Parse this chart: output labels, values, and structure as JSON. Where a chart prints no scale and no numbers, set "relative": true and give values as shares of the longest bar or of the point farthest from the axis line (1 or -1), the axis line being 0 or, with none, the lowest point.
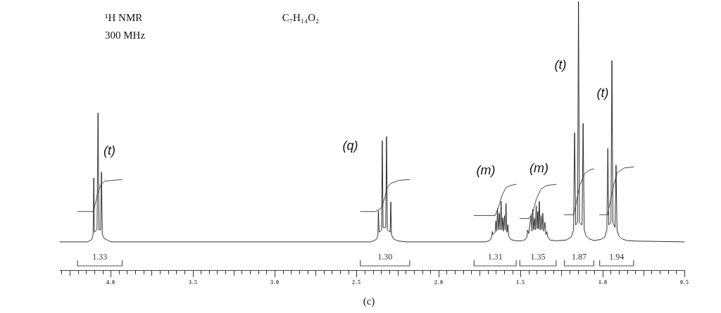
{
  "chart_data": {
    "type": "line",
    "title": "¹H NMR",
    "subtitle": "300 MHz",
    "relative": true,
    "xlim": [
      4.31,
      0.5
    ],
    "xticks": [
      {
        "value": 4.3,
        "label": null
      },
      {
        "value": 4.25,
        "label": null
      },
      {
        "value": 4.2,
        "label": null
      },
      {
        "value": 4.15,
        "label": null
      },
      {
        "value": 4.1,
        "label": null
      },
      {
        "value": 4.05,
        "label": null
      },
      {
        "value": 4,
        "label": "4.0"
      },
      {
        "value": 3.95,
        "label": null
      },
      {
        "value": 3.9,
        "label": null
      },
      {
        "value": 3.85,
        "label": null
      },
      {
        "value": 3.8,
        "label": null
      },
      {
        "value": 3.75,
        "label": null
      },
      {
        "value": 3.7,
        "label": null
      },
      {
        "value": 3.65,
        "label": null
      },
      {
        "value": 3.6,
        "label": null
      },
      {
        "value": 3.55,
        "label": null
      },
      {
        "value": 3.5,
        "label": "3.5"
      },
      {
        "value": 3.45,
        "label": null
      },
      {
        "value": 3.4,
        "label": null
      },
      {
        "value": 3.35,
        "label": null
      },
      {
        "value": 3.3,
        "label": null
      },
      {
        "value": 3.25,
        "label": null
      },
      {
        "value": 3.2,
        "label": null
      },
      {
        "value": 3.15,
        "label": null
      },
      {
        "value": 3.1,
        "label": null
      },
      {
        "value": 3.05,
        "label": null
      },
      {
        "value": 3,
        "label": "3.0"
      },
      {
        "value": 2.95,
        "label": null
      },
      {
        "value": 2.9,
        "label": null
      },
      {
        "value": 2.85,
        "label": null
      },
      {
        "value": 2.8,
        "label": null
      },
      {
        "value": 2.75,
        "label": null
      },
      {
        "value": 2.7,
        "label": null
      },
      {
        "value": 2.65,
        "label": null
      },
      {
        "value": 2.6,
        "label": null
      },
      {
        "value": 2.55,
        "label": null
      },
      {
        "value": 2.5,
        "label": "2.5"
      },
      {
        "value": 2.45,
        "label": null
      },
      {
        "value": 2.4,
        "label": null
      },
      {
        "value": 2.35,
        "label": null
      },
      {
        "value": 2.3,
        "label": null
      },
      {
        "value": 2.25,
        "label": null
      },
      {
        "value": 2.2,
        "label": null
      },
      {
        "value": 2.15,
        "label": null
      },
      {
        "value": 2.1,
        "label": null
      },
      {
        "value": 2.05,
        "label": null
      },
      {
        "value": 2,
        "label": "2.0"
      },
      {
        "value": 1.95,
        "label": null
      },
      {
        "value": 1.9,
        "label": null
      },
      {
        "value": 1.85,
        "label": null
      },
      {
        "value": 1.8,
        "label": null
      },
      {
        "value": 1.75,
        "label": null
      },
      {
        "value": 1.7,
        "label": null
      },
      {
        "value": 1.65,
        "label": null
      },
      {
        "value": 1.6,
        "label": null
      },
      {
        "value": 1.55,
        "label": null
      },
      {
        "value": 1.5,
        "label": "1.5"
      },
      {
        "value": 1.45,
        "label": null
      },
      {
        "value": 1.4,
        "label": null
      },
      {
        "value": 1.35,
        "label": null
      },
      {
        "value": 1.3,
        "label": null
      },
      {
        "value": 1.25,
        "label": null
      },
      {
        "value": 1.2,
        "label": null
      },
      {
        "value": 1.15,
        "label": null
      },
      {
        "value": 1.1,
        "label": null
      },
      {
        "value": 1.05,
        "label": null
      },
      {
        "value": 1,
        "label": "1.0"
      },
      {
        "value": 0.95,
        "label": null
      },
      {
        "value": 0.9,
        "label": null
      },
      {
        "value": 0.85,
        "label": null
      },
      {
        "value": 0.8,
        "label": null
      },
      {
        "value": 0.75,
        "label": null
      },
      {
        "value": 0.7,
        "label": null
      },
      {
        "value": 0.65,
        "label": null
      },
      {
        "value": 0.6,
        "label": null
      },
      {
        "value": 0.55,
        "label": null
      },
      {
        "value": 0.5,
        "label": "0.5"
      }
    ],
    "series": [
      {
        "type": "line",
        "color": "#1a1a1a",
        "x": [
          4.31,
          4.14,
          4.115,
          4.107,
          4.103,
          4.099,
          4.083,
          4.077,
          4.071,
          4.061,
          4.056,
          4.051,
          4.04,
          4.02,
          4.0,
          2.41,
          2.38,
          2.37,
          2.367,
          2.362,
          2.347,
          2.343,
          2.338,
          2.322,
          2.317,
          2.312,
          2.295,
          2.291,
          2.287,
          2.275,
          2.25,
          2.2,
          1.71,
          1.685,
          1.676,
          1.672,
          1.668,
          1.655,
          1.65,
          1.645,
          1.64,
          1.635,
          1.629,
          1.624,
          1.618,
          1.613,
          1.608,
          1.603,
          1.597,
          1.593,
          1.588,
          1.583,
          1.577,
          1.572,
          1.56,
          1.53,
          1.49,
          1.47,
          1.461,
          1.457,
          1.45,
          1.435,
          1.43,
          1.425,
          1.42,
          1.414,
          1.409,
          1.404,
          1.399,
          1.394,
          1.39,
          1.385,
          1.38,
          1.374,
          1.369,
          1.364,
          1.358,
          1.351,
          1.345,
          1.339,
          1.333,
          1.32,
          1.28,
          1.22,
          1.19,
          1.176,
          1.17,
          1.163,
          1.152,
          1.146,
          1.14,
          1.124,
          1.118,
          1.111,
          1.1,
          1.08,
          1.05,
          1.01,
          0.985,
          0.973,
          0.967,
          0.961,
          0.948,
          0.942,
          0.936,
          0.923,
          0.917,
          0.911,
          0.9,
          0.88,
          0.85,
          0.8,
          0.5
        ],
        "values": [
          0.105,
          0.105,
          0.114,
          0.132,
          0.343,
          0.141,
          0.15,
          0.585,
          0.15,
          0.15,
          0.365,
          0.132,
          0.118,
          0.112,
          0.105,
          0.105,
          0.114,
          0.127,
          0.221,
          0.141,
          0.15,
          0.481,
          0.159,
          0.159,
          0.497,
          0.15,
          0.141,
          0.253,
          0.132,
          0.116,
          0.109,
          0.105,
          0.105,
          0.112,
          0.123,
          0.143,
          0.132,
          0.141,
          0.183,
          0.145,
          0.23,
          0.15,
          0.212,
          0.15,
          0.256,
          0.15,
          0.195,
          0.145,
          0.203,
          0.15,
          0.248,
          0.141,
          0.169,
          0.127,
          0.114,
          0.109,
          0.109,
          0.114,
          0.123,
          0.149,
          0.136,
          0.203,
          0.145,
          0.226,
          0.15,
          0.192,
          0.15,
          0.239,
          0.154,
          0.218,
          0.154,
          0.256,
          0.15,
          0.203,
          0.15,
          0.212,
          0.145,
          0.178,
          0.132,
          0.143,
          0.123,
          0.112,
          0.109,
          0.112,
          0.123,
          0.15,
          0.511,
          0.168,
          0.177,
          1.0,
          0.177,
          0.168,
          0.546,
          0.15,
          0.127,
          0.116,
          0.11,
          0.114,
          0.123,
          0.15,
          0.453,
          0.168,
          0.177,
          0.78,
          0.177,
          0.159,
          0.391,
          0.15,
          0.127,
          0.116,
          0.11,
          0.108,
          0.105
        ]
      },
      {
        "type": "line",
        "color": "#333333",
        "x": [
          4.202,
          4.109,
          4.102,
          4.08,
          4.059,
          4.037,
          3.987,
          3.93,
          3.5,
          2.477,
          2.384,
          2.348,
          2.327,
          2.313,
          2.291,
          2.241,
          2.176,
          2.0,
          1.783,
          1.654,
          1.633,
          1.611,
          1.59,
          1.561,
          1.526,
          1.515,
          1.504,
          1.447,
          1.425,
          1.404,
          1.375,
          1.339,
          1.282,
          1.27,
          1.232,
          1.175,
          1.161,
          1.139,
          1.11,
          1.082,
          1.053,
          1.04,
          1.017,
          0.967,
          0.953,
          0.931,
          0.91,
          0.867,
          0.81
        ],
        "values": [
          0.218,
          0.218,
          0.225,
          0.284,
          0.319,
          0.331,
          0.334,
          0.337,
          null,
          0.218,
          0.218,
          0.232,
          0.271,
          0.306,
          0.323,
          0.334,
          0.337,
          null,
          0.203,
          0.203,
          0.237,
          0.28,
          0.306,
          0.315,
          0.319,
          null,
          0.192,
          0.192,
          0.215,
          0.263,
          0.302,
          0.315,
          0.319,
          null,
          0.206,
          0.206,
          0.246,
          0.315,
          0.358,
          0.371,
          0.377,
          null,
          0.206,
          0.206,
          0.254,
          0.315,
          0.363,
          0.38,
          0.384
        ]
      }
    ],
    "annotations": [
      "C₇H₁₄O₂",
      "(c)",
      "(t)",
      "(q)",
      "(m)",
      "(m)",
      "(t)",
      "(t)",
      "1.33",
      "1.30",
      "1.31",
      "1.35",
      "1.87",
      "1.94"
    ]
  }
}
